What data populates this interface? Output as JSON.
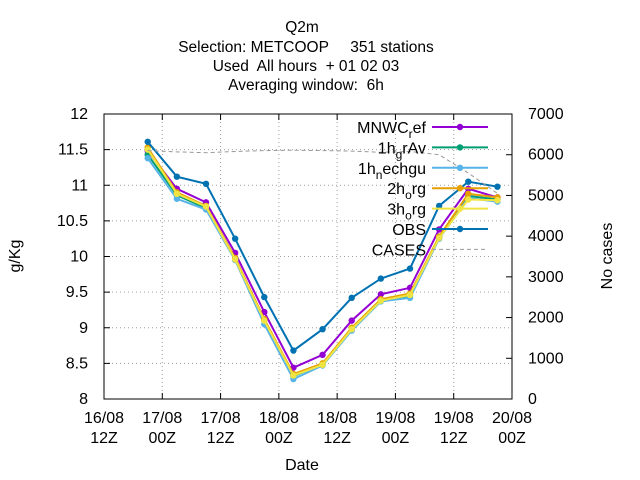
{
  "chart_data": {
    "type": "line",
    "title": [
      "Q2m",
      "Selection: METCOOP     351 stations",
      "Used  All hours  + 01 02 03",
      "Averaging window:  6h"
    ],
    "xlabel": "Date",
    "ylabel": "g/Kg",
    "y2label": "No cases",
    "xlim": [
      0,
      84
    ],
    "ylim": [
      8,
      12
    ],
    "y2lim": [
      0,
      7000
    ],
    "grid": true,
    "legend_position": "top-right",
    "x_ticks": [
      {
        "x": 0,
        "line1": "16/08",
        "line2": "12Z"
      },
      {
        "x": 12,
        "line1": "17/08",
        "line2": "00Z"
      },
      {
        "x": 24,
        "line1": "17/08",
        "line2": "12Z"
      },
      {
        "x": 36,
        "line1": "18/08",
        "line2": "00Z"
      },
      {
        "x": 48,
        "line1": "18/08",
        "line2": "12Z"
      },
      {
        "x": 60,
        "line1": "19/08",
        "line2": "00Z"
      },
      {
        "x": 72,
        "line1": "19/08",
        "line2": "12Z"
      },
      {
        "x": 84,
        "line1": "20/08",
        "line2": "00Z"
      }
    ],
    "y_ticks": [
      "8",
      "8.5",
      "9",
      "9.5",
      "10",
      "10.5",
      "11",
      "11.5",
      "12"
    ],
    "y2_ticks": [
      "0",
      "1000",
      "2000",
      "3000",
      "4000",
      "5000",
      "6000",
      "7000"
    ],
    "x": [
      9,
      15,
      21,
      27,
      33,
      39,
      45,
      51,
      57,
      63,
      69,
      75,
      81
    ],
    "series": [
      {
        "name": "MNWC_ref",
        "name_parts": [
          "MNWC",
          "r",
          "ef"
        ],
        "color": "#9400d3",
        "marker": "circle",
        "axis": "y",
        "values": [
          11.48,
          10.95,
          10.76,
          10.05,
          9.22,
          8.44,
          8.62,
          9.1,
          9.47,
          9.56,
          10.38,
          10.95,
          10.83
        ]
      },
      {
        "name": "1h_grAv",
        "name_parts": [
          "1h",
          "g",
          "rAv"
        ],
        "color": "#009e73",
        "marker": "circle",
        "axis": "y",
        "values": [
          11.43,
          10.86,
          10.68,
          9.97,
          9.1,
          8.32,
          8.49,
          8.99,
          9.39,
          9.45,
          10.27,
          10.85,
          10.8
        ]
      },
      {
        "name": "1h_nechgu",
        "name_parts": [
          "1h",
          "n",
          "echgu"
        ],
        "color": "#56b4e9",
        "marker": "circle",
        "axis": "y",
        "values": [
          11.38,
          10.81,
          10.66,
          9.95,
          9.05,
          8.28,
          8.47,
          8.96,
          9.37,
          9.42,
          10.25,
          10.82,
          10.77
        ]
      },
      {
        "name": "2h_org",
        "name_parts": [
          "2h",
          "o",
          "rg"
        ],
        "color": "#e69f00",
        "marker": "circle",
        "axis": "y",
        "values": [
          11.53,
          10.9,
          10.71,
          9.98,
          9.12,
          8.35,
          8.5,
          9.0,
          9.4,
          9.48,
          10.28,
          10.88,
          10.83
        ]
      },
      {
        "name": "3h_org",
        "name_parts": [
          "3h",
          "o",
          "rg"
        ],
        "color": "#f0e442",
        "marker": "circle",
        "axis": "y",
        "values": [
          11.5,
          10.88,
          10.7,
          9.96,
          9.1,
          8.33,
          8.48,
          8.98,
          9.38,
          9.46,
          10.26,
          10.8,
          10.79
        ]
      },
      {
        "name": "OBS",
        "name_parts": [
          "OBS",
          "",
          ""
        ],
        "color": "#0072b2",
        "marker": "circle",
        "axis": "y",
        "values": [
          11.61,
          11.12,
          11.02,
          10.25,
          9.43,
          8.68,
          8.98,
          9.42,
          9.69,
          9.83,
          10.71,
          11.05,
          10.98
        ]
      },
      {
        "name": "CASES",
        "name_parts": [
          "CASES",
          "",
          ""
        ],
        "color": "#999999",
        "marker": "none",
        "dashed": true,
        "axis": "y2",
        "values": [
          6100,
          6070,
          6050,
          6080,
          6100,
          6110,
          6100,
          6090,
          6060,
          6080,
          6000,
          5550,
          5050
        ]
      }
    ]
  }
}
